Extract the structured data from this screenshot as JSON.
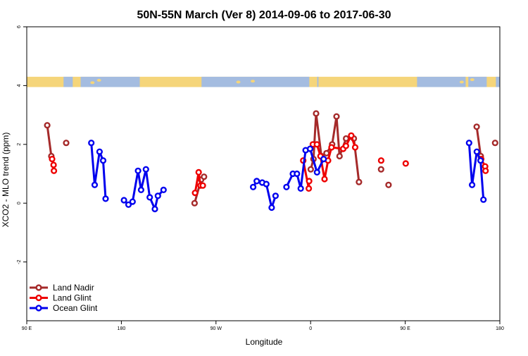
{
  "chart_data": {
    "type": "line",
    "title": "50N-55N March (Ver 8)   2014-09-06 to 2017-06-30",
    "xlabel": "Longitude",
    "ylabel": "XCO2 - MLO trend (ppm)",
    "xlim": [
      90,
      450
    ],
    "ylim": [
      -4,
      6
    ],
    "x_ticks": [
      {
        "value": 90,
        "label": "90 E"
      },
      {
        "value": 162,
        "label": "180"
      },
      {
        "value": 234,
        "label": "90 W"
      },
      {
        "value": 306,
        "label": "0"
      },
      {
        "value": 378,
        "label": "90 E"
      },
      {
        "value": 450,
        "label": "180"
      }
    ],
    "y_ticks": [
      -2,
      0,
      2,
      4,
      6
    ],
    "map_band": {
      "y_range": [
        3.95,
        4.3
      ],
      "colors": {
        "land": "#f5d57a",
        "ocean": "#a4bce0"
      }
    },
    "legend_position": "bottom-left",
    "series": [
      {
        "name": "Land Nadir",
        "color": "#a52a2a",
        "segments": [
          [
            [
              105.6,
              2.65
            ],
            [
              108.7,
              1.6
            ]
          ],
          [
            [
              120,
              2.05
            ]
          ],
          [
            [
              217.7,
              0.0
            ],
            [
              222.7,
              0.8
            ],
            [
              224.9,
              0.9
            ]
          ],
          [
            [
              306.1,
              1.15
            ],
            [
              308.2,
              1.5
            ],
            [
              310.2,
              3.05
            ],
            [
              314.2,
              1.6
            ],
            [
              318.1,
              1.7
            ],
            [
              322.4,
              2.0
            ],
            [
              325.7,
              2.95
            ],
            [
              328,
              1.6
            ],
            [
              333,
              2.2
            ],
            [
              338.9,
              2.2
            ],
            [
              342.8,
              0.72
            ]
          ],
          [
            [
              359.6,
              1.15
            ]
          ],
          [
            [
              365.3,
              0.62
            ]
          ],
          [
            [
              432.4,
              2.6
            ],
            [
              435.5,
              1.6
            ]
          ],
          [
            [
              446.4,
              2.05
            ]
          ]
        ]
      },
      {
        "name": "Land Glint",
        "color": "#ee0000",
        "segments": [
          [
            [
              109.3,
              1.5
            ],
            [
              110.4,
              1.3
            ],
            [
              110.7,
              1.1
            ]
          ],
          [
            [
              218.1,
              0.35
            ],
            [
              220.8,
              1.05
            ],
            [
              222.2,
              0.6
            ],
            [
              224,
              0.6
            ]
          ],
          [
            [
              300.4,
              1.45
            ],
            [
              304.6,
              0.5
            ],
            [
              304.9,
              0.75
            ]
          ],
          [
            [
              307.7,
              2.0
            ],
            [
              310.8,
              2.0
            ],
            [
              313.5,
              1.6
            ],
            [
              316.6,
              0.82
            ],
            [
              319.3,
              1.45
            ],
            [
              321.9,
              1.9
            ],
            [
              330.8,
              1.85
            ],
            [
              332.9,
              1.95
            ],
            [
              336.9,
              2.3
            ],
            [
              339.9,
              1.9
            ]
          ],
          [
            [
              359.7,
              1.45
            ]
          ],
          [
            [
              378.4,
              1.35
            ]
          ],
          [
            [
              435.8,
              1.5
            ],
            [
              438.8,
              1.25
            ],
            [
              439.1,
              1.1
            ]
          ]
        ]
      },
      {
        "name": "Ocean Glint",
        "color": "#0000ee",
        "segments": [
          [
            [
              139.1,
              2.05
            ],
            [
              141.7,
              0.62
            ],
            [
              145.4,
              1.75
            ],
            [
              148.1,
              1.45
            ],
            [
              150,
              0.15
            ]
          ],
          [
            [
              164,
              0.1
            ],
            [
              167.4,
              -0.05
            ],
            [
              170.5,
              0.05
            ],
            [
              174.7,
              1.1
            ],
            [
              177,
              0.45
            ],
            [
              180.7,
              1.15
            ],
            [
              183.6,
              0.2
            ],
            [
              187.5,
              -0.2
            ],
            [
              189.8,
              0.25
            ],
            [
              194.1,
              0.45
            ]
          ],
          [
            [
              262.3,
              0.55
            ],
            [
              265,
              0.75
            ],
            [
              269.2,
              0.7
            ],
            [
              272.3,
              0.65
            ],
            [
              276.4,
              -0.15
            ],
            [
              279.3,
              0.25
            ]
          ],
          [
            [
              287.6,
              0.55
            ],
            [
              292.5,
              1.0
            ],
            [
              295.6,
              1.0
            ],
            [
              298.5,
              0.5
            ],
            [
              302.2,
              1.8
            ],
            [
              305.6,
              1.85
            ],
            [
              310.9,
              1.05
            ],
            [
              315.9,
              1.5
            ]
          ],
          [
            [
              426.6,
              2.05
            ],
            [
              428.9,
              0.62
            ],
            [
              432.5,
              1.75
            ],
            [
              435.3,
              1.45
            ],
            [
              437.5,
              0.12
            ]
          ]
        ]
      }
    ]
  }
}
